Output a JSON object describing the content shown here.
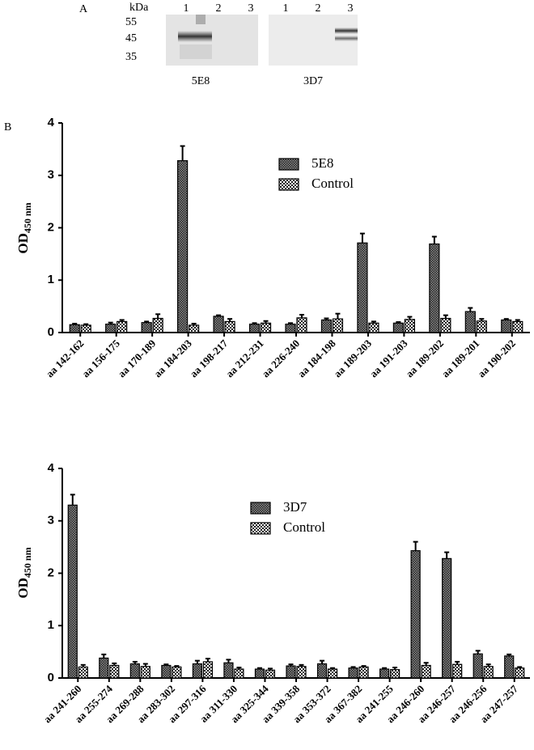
{
  "panel_a": {
    "label": "A",
    "kda": "kDa",
    "markers": [
      55,
      45,
      35
    ],
    "blots": [
      {
        "lanes": [
          1,
          2,
          3
        ],
        "name": "5E8"
      },
      {
        "lanes": [
          1,
          2,
          3
        ],
        "name": "3D7"
      }
    ]
  },
  "panel_b": {
    "label": "B"
  },
  "chart_data": [
    {
      "type": "bar",
      "y_label": "OD",
      "y_label_sub": "450 nm",
      "categories": [
        "aa 142-162",
        "aa 156-175",
        "aa 170-189",
        "aa 184-203",
        "aa 198-217",
        "aa 212-231",
        "aa 226-240",
        "aa 184-198",
        "aa 189-203",
        "aa 191-203",
        "aa 189-202",
        "aa 189-201",
        "aa 190-202"
      ],
      "series": [
        {
          "name": "5E8",
          "color": "#8c8c8c",
          "values": [
            0.15,
            0.16,
            0.19,
            3.28,
            0.31,
            0.16,
            0.16,
            0.24,
            1.71,
            0.18,
            1.69,
            0.4,
            0.24
          ],
          "errors": [
            0.02,
            0.03,
            0.02,
            0.28,
            0.02,
            0.02,
            0.02,
            0.03,
            0.18,
            0.02,
            0.14,
            0.07,
            0.02
          ]
        },
        {
          "name": "Control",
          "color": "#ffffff",
          "values": [
            0.14,
            0.21,
            0.27,
            0.14,
            0.21,
            0.18,
            0.28,
            0.26,
            0.18,
            0.25,
            0.27,
            0.22,
            0.21
          ],
          "errors": [
            0.02,
            0.03,
            0.08,
            0.03,
            0.05,
            0.04,
            0.06,
            0.1,
            0.03,
            0.05,
            0.06,
            0.04,
            0.03
          ]
        }
      ],
      "ylim": [
        0,
        4
      ],
      "yticks": [
        0,
        1,
        2,
        3,
        4
      ]
    },
    {
      "type": "bar",
      "y_label": "OD",
      "y_label_sub": "450 nm",
      "categories": [
        "aa 241-260",
        "aa 255-274",
        "aa 269-288",
        "aa 283-302",
        "aa 297-316",
        "aa 311-330",
        "aa 325-344",
        "aa 339-358",
        "aa 353-372",
        "aa 367-382",
        "aa 241-255",
        "aa 246-260",
        "aa 246-257",
        "aa 246-256",
        "aa 247-257"
      ],
      "series": [
        {
          "name": "3D7",
          "color": "#8c8c8c",
          "values": [
            3.3,
            0.38,
            0.27,
            0.24,
            0.27,
            0.29,
            0.17,
            0.23,
            0.27,
            0.19,
            0.17,
            2.43,
            2.28,
            0.46,
            0.42
          ],
          "errors": [
            0.2,
            0.07,
            0.04,
            0.02,
            0.06,
            0.06,
            0.02,
            0.03,
            0.06,
            0.02,
            0.02,
            0.17,
            0.12,
            0.06,
            0.03
          ]
        },
        {
          "name": "Control",
          "color": "#ffffff",
          "values": [
            0.21,
            0.24,
            0.22,
            0.21,
            0.31,
            0.17,
            0.15,
            0.22,
            0.17,
            0.21,
            0.16,
            0.24,
            0.26,
            0.22,
            0.19
          ],
          "errors": [
            0.04,
            0.04,
            0.05,
            0.02,
            0.06,
            0.03,
            0.03,
            0.03,
            0.02,
            0.02,
            0.04,
            0.05,
            0.05,
            0.04,
            0.02
          ]
        }
      ],
      "ylim": [
        0,
        4
      ],
      "yticks": [
        0,
        1,
        2,
        3,
        4
      ]
    }
  ]
}
